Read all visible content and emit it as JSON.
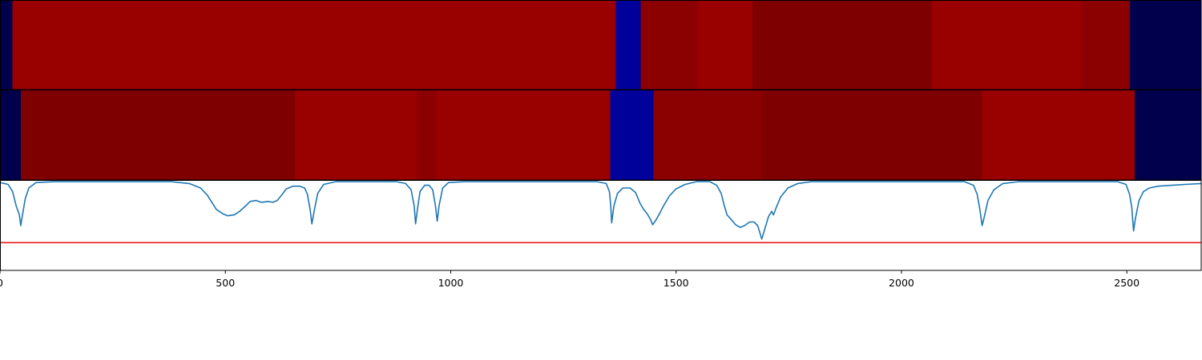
{
  "chart_data": [
    {
      "type": "heatmap",
      "xlim": [
        0,
        2665
      ],
      "segments": [
        {
          "x0": 0,
          "x1": 28,
          "color": "#00004c"
        },
        {
          "x0": 28,
          "x1": 1366,
          "color": "#990000"
        },
        {
          "x0": 1366,
          "x1": 1421,
          "color": "#00009a"
        },
        {
          "x0": 1421,
          "x1": 1547,
          "color": "#8b0000"
        },
        {
          "x0": 1547,
          "x1": 1669,
          "color": "#990000"
        },
        {
          "x0": 1669,
          "x1": 2068,
          "color": "#7f0000"
        },
        {
          "x0": 2068,
          "x1": 2398,
          "color": "#990000"
        },
        {
          "x0": 2398,
          "x1": 2507,
          "color": "#8b0000"
        },
        {
          "x0": 2507,
          "x1": 2665,
          "color": "#00004c"
        }
      ]
    },
    {
      "type": "heatmap",
      "xlim": [
        0,
        2665
      ],
      "segments": [
        {
          "x0": 0,
          "x1": 46,
          "color": "#00004c"
        },
        {
          "x0": 46,
          "x1": 654,
          "color": "#7f0000"
        },
        {
          "x0": 654,
          "x1": 925,
          "color": "#990000"
        },
        {
          "x0": 925,
          "x1": 968,
          "color": "#8b0000"
        },
        {
          "x0": 968,
          "x1": 1354,
          "color": "#990000"
        },
        {
          "x0": 1354,
          "x1": 1450,
          "color": "#00009a"
        },
        {
          "x0": 1450,
          "x1": 1690,
          "color": "#8b0000"
        },
        {
          "x0": 1690,
          "x1": 2179,
          "color": "#7f0000"
        },
        {
          "x0": 2179,
          "x1": 2517,
          "color": "#990000"
        },
        {
          "x0": 2517,
          "x1": 2665,
          "color": "#00004c"
        }
      ]
    },
    {
      "type": "line",
      "xlim": [
        0,
        2665
      ],
      "ylim": [
        0,
        1
      ],
      "x_ticks": [
        0,
        500,
        1000,
        1500,
        2000,
        2500
      ],
      "threshold": {
        "value": 0.31,
        "color": "#e41a1c"
      },
      "series": [
        {
          "color": "#1f77b4",
          "points": [
            [
              0,
              0.98
            ],
            [
              18,
              0.96
            ],
            [
              28,
              0.88
            ],
            [
              36,
              0.72
            ],
            [
              43,
              0.62
            ],
            [
              46,
              0.5
            ],
            [
              50,
              0.62
            ],
            [
              56,
              0.8
            ],
            [
              64,
              0.92
            ],
            [
              80,
              0.98
            ],
            [
              120,
              0.99
            ],
            [
              380,
              0.99
            ],
            [
              420,
              0.97
            ],
            [
              445,
              0.92
            ],
            [
              460,
              0.84
            ],
            [
              470,
              0.76
            ],
            [
              480,
              0.68
            ],
            [
              495,
              0.63
            ],
            [
              505,
              0.61
            ],
            [
              520,
              0.62
            ],
            [
              532,
              0.66
            ],
            [
              545,
              0.72
            ],
            [
              555,
              0.77
            ],
            [
              568,
              0.78
            ],
            [
              580,
              0.76
            ],
            [
              595,
              0.77
            ],
            [
              605,
              0.76
            ],
            [
              615,
              0.78
            ],
            [
              625,
              0.84
            ],
            [
              635,
              0.91
            ],
            [
              650,
              0.94
            ],
            [
              665,
              0.94
            ],
            [
              676,
              0.92
            ],
            [
              682,
              0.85
            ],
            [
              688,
              0.68
            ],
            [
              692,
              0.52
            ],
            [
              697,
              0.66
            ],
            [
              705,
              0.86
            ],
            [
              718,
              0.96
            ],
            [
              745,
              0.99
            ],
            [
              880,
              0.99
            ],
            [
              900,
              0.97
            ],
            [
              912,
              0.9
            ],
            [
              919,
              0.72
            ],
            [
              922,
              0.52
            ],
            [
              926,
              0.68
            ],
            [
              932,
              0.88
            ],
            [
              942,
              0.95
            ],
            [
              952,
              0.95
            ],
            [
              960,
              0.9
            ],
            [
              966,
              0.72
            ],
            [
              970,
              0.55
            ],
            [
              974,
              0.72
            ],
            [
              982,
              0.92
            ],
            [
              995,
              0.98
            ],
            [
              1030,
              0.99
            ],
            [
              1325,
              0.99
            ],
            [
              1345,
              0.97
            ],
            [
              1352,
              0.88
            ],
            [
              1355,
              0.72
            ],
            [
              1357,
              0.53
            ],
            [
              1362,
              0.72
            ],
            [
              1370,
              0.86
            ],
            [
              1382,
              0.92
            ],
            [
              1398,
              0.92
            ],
            [
              1410,
              0.87
            ],
            [
              1420,
              0.75
            ],
            [
              1428,
              0.68
            ],
            [
              1436,
              0.63
            ],
            [
              1443,
              0.57
            ],
            [
              1448,
              0.51
            ],
            [
              1455,
              0.56
            ],
            [
              1464,
              0.64
            ],
            [
              1472,
              0.72
            ],
            [
              1485,
              0.83
            ],
            [
              1500,
              0.91
            ],
            [
              1520,
              0.96
            ],
            [
              1545,
              0.99
            ],
            [
              1575,
              0.99
            ],
            [
              1590,
              0.95
            ],
            [
              1600,
              0.86
            ],
            [
              1606,
              0.74
            ],
            [
              1613,
              0.62
            ],
            [
              1622,
              0.57
            ],
            [
              1632,
              0.51
            ],
            [
              1642,
              0.48
            ],
            [
              1652,
              0.5
            ],
            [
              1663,
              0.54
            ],
            [
              1673,
              0.54
            ],
            [
              1681,
              0.5
            ],
            [
              1686,
              0.42
            ],
            [
              1690,
              0.35
            ],
            [
              1696,
              0.45
            ],
            [
              1705,
              0.6
            ],
            [
              1712,
              0.66
            ],
            [
              1716,
              0.62
            ],
            [
              1722,
              0.7
            ],
            [
              1732,
              0.82
            ],
            [
              1748,
              0.92
            ],
            [
              1770,
              0.97
            ],
            [
              1800,
              0.99
            ],
            [
              1840,
              0.99
            ],
            [
              2140,
              0.99
            ],
            [
              2160,
              0.95
            ],
            [
              2168,
              0.85
            ],
            [
              2174,
              0.68
            ],
            [
              2179,
              0.5
            ],
            [
              2184,
              0.6
            ],
            [
              2192,
              0.78
            ],
            [
              2205,
              0.9
            ],
            [
              2225,
              0.97
            ],
            [
              2260,
              0.99
            ],
            [
              2480,
              0.99
            ],
            [
              2498,
              0.96
            ],
            [
              2506,
              0.85
            ],
            [
              2511,
              0.7
            ],
            [
              2515,
              0.44
            ],
            [
              2519,
              0.58
            ],
            [
              2527,
              0.78
            ],
            [
              2537,
              0.88
            ],
            [
              2550,
              0.92
            ],
            [
              2570,
              0.94
            ],
            [
              2600,
              0.95
            ],
            [
              2630,
              0.96
            ],
            [
              2665,
              0.97
            ]
          ]
        }
      ]
    }
  ]
}
